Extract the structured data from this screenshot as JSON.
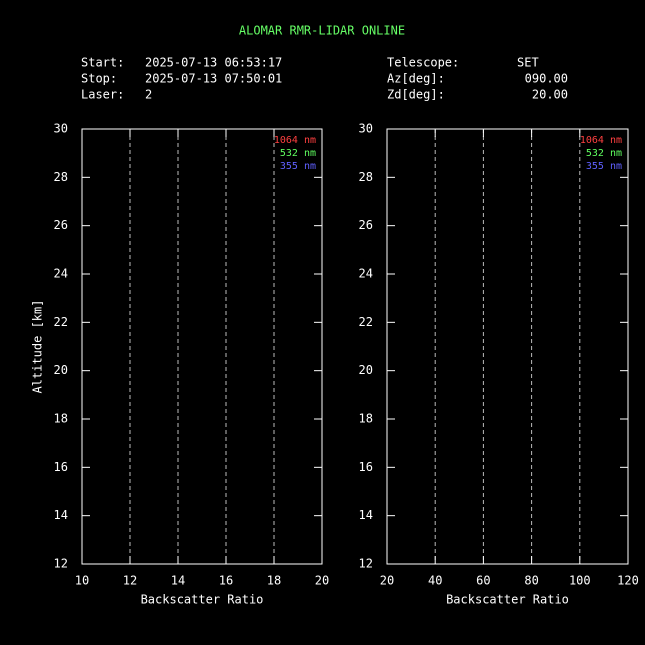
{
  "header": {
    "title": "ALOMAR RMR-LIDAR ONLINE",
    "fields": [
      {
        "label": "Start:",
        "value": "2025-07-13 06:53:17"
      },
      {
        "label": "Stop:",
        "value": "2025-07-13 07:50:01"
      },
      {
        "label": "Laser:",
        "value": "2"
      },
      {
        "label": "Telescope:",
        "value": "SET"
      },
      {
        "label": "Az[deg]:",
        "value": "090.00"
      },
      {
        "label": "Zd[deg]:",
        "value": "20.00"
      }
    ]
  },
  "chart_data": [
    {
      "type": "line",
      "xlabel": "Backscatter Ratio",
      "ylabel": "Altitude [km]",
      "xlim": [
        10,
        20
      ],
      "xticks": [
        10,
        12,
        14,
        16,
        18,
        20
      ],
      "ylim": [
        12,
        30
      ],
      "yticks": [
        12,
        14,
        16,
        18,
        20,
        22,
        24,
        26,
        28,
        30
      ],
      "grid": true,
      "legend": "upper right",
      "x": [],
      "series": [
        {
          "name": "1064 nm",
          "color": "#ff4040",
          "values": []
        },
        {
          "name": "532 nm",
          "color": "#60ff60",
          "values": []
        },
        {
          "name": "355 nm",
          "color": "#6060ff",
          "values": []
        }
      ]
    },
    {
      "type": "line",
      "xlabel": "Backscatter Ratio",
      "xlim": [
        20,
        120
      ],
      "xticks": [
        20,
        40,
        60,
        80,
        100,
        120
      ],
      "ylim": [
        12,
        30
      ],
      "yticks": [
        12,
        14,
        16,
        18,
        20,
        22,
        24,
        26,
        28,
        30
      ],
      "grid": true,
      "legend": "upper right",
      "x": [],
      "series": [
        {
          "name": "1064 nm",
          "color": "#ff4040",
          "values": []
        },
        {
          "name": "532 nm",
          "color": "#60ff60",
          "values": []
        },
        {
          "name": "355 nm",
          "color": "#6060ff",
          "values": []
        }
      ]
    }
  ]
}
